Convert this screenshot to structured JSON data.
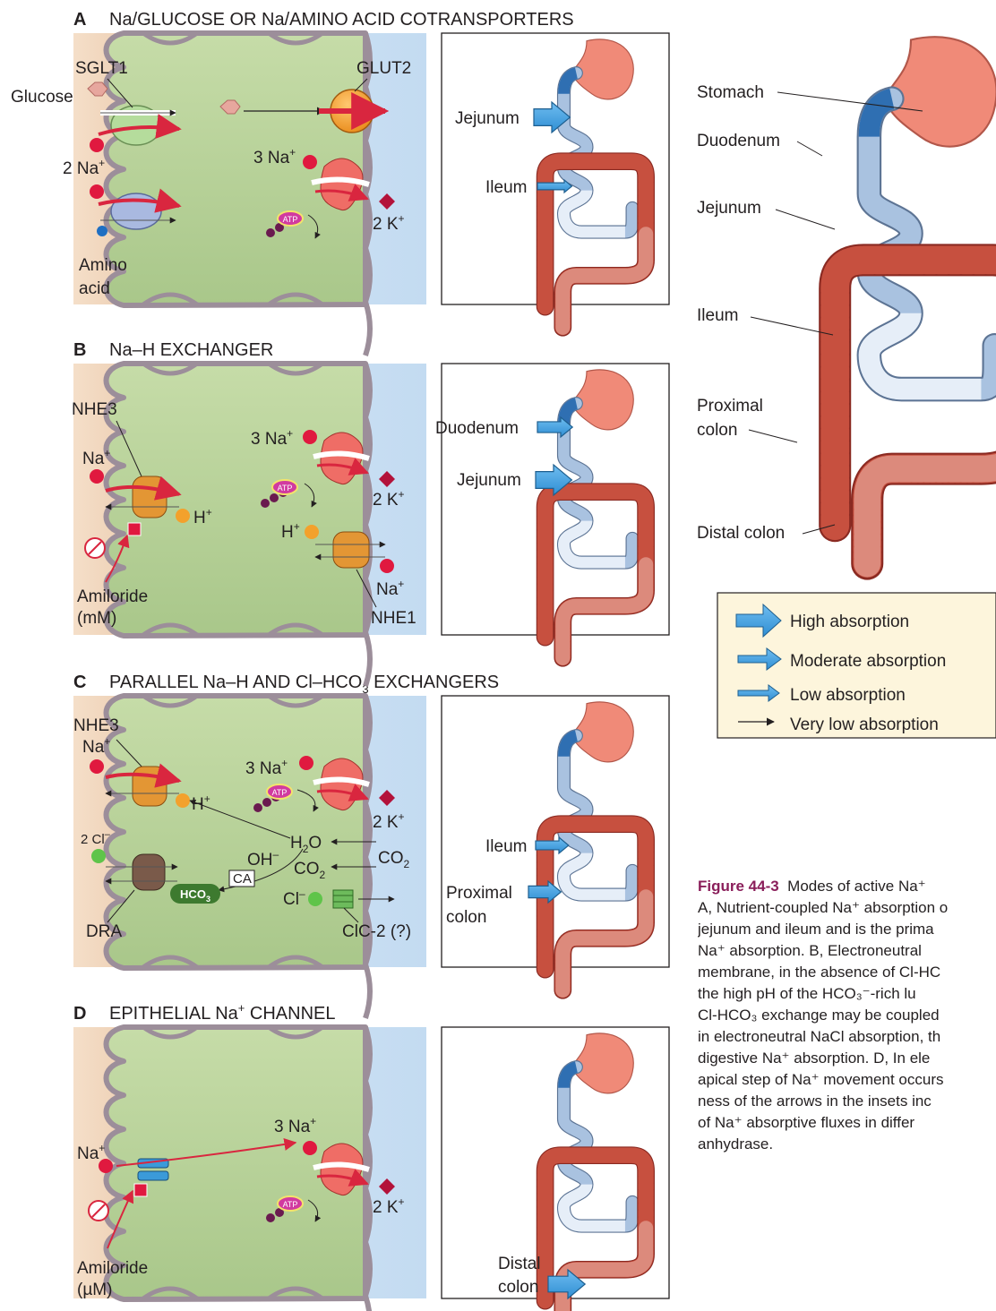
{
  "panels": [
    {
      "letter": "A",
      "title": "Na/GLUCOSE OR Na/AMINO ACID COTRANSPORTERS"
    },
    {
      "letter": "B",
      "title": "Na–H EXCHANGER"
    },
    {
      "letter": "C",
      "title": "PARALLEL Na–H AND Cl–HCO",
      "title_sub": "3",
      "title_tail": " EXCHANGERS"
    },
    {
      "letter": "D",
      "title": "EPITHELIAL Na",
      "title_sup": "+",
      "title_tail": " CHANNEL"
    }
  ],
  "panel_a": {
    "sglt1": "SGLT1",
    "glut2": "GLUT2",
    "glucose": "Glucose",
    "na2": "2 Na",
    "na3": "3 Na",
    "k2": "2 K",
    "plus": "+",
    "amino": "Amino",
    "acid": "acid",
    "atp": "ATP"
  },
  "panel_b": {
    "nhe3": "NHE3",
    "na": "Na",
    "h": "H",
    "na3": "3 Na",
    "k2": "2 K",
    "plus": "+",
    "nhe1": "NHE1",
    "amiloride": "Amiloride",
    "conc": "(mM)",
    "atp": "ATP"
  },
  "panel_c": {
    "nhe3": "NHE3",
    "na": "Na",
    "h": "H",
    "na3": "3 Na",
    "k2": "2 K",
    "plus": "+",
    "minus": "–",
    "cl2": "2 Cl",
    "h2o_h": "H",
    "h2o_o": "O",
    "two": "2",
    "oh": "OH",
    "co2_c": "CO",
    "hco3": "HCO",
    "three": "3",
    "ca": "CA",
    "cl": "Cl",
    "clc2": "ClC-2 (?)",
    "dra": "DRA",
    "atp": "ATP"
  },
  "panel_d": {
    "na": "Na",
    "na3": "3 Na",
    "k2": "2 K",
    "plus": "+",
    "amiloride": "Amiloride",
    "conc": "(µM)",
    "atp": "ATP"
  },
  "insets": [
    {
      "labels": [
        "Jejunum",
        "Ileum"
      ]
    },
    {
      "labels": [
        "Duodenum",
        "Jejunum"
      ]
    },
    {
      "labels": [
        "Ileum",
        "Proximal",
        "colon"
      ]
    },
    {
      "labels": [
        "Distal",
        "colon"
      ]
    }
  ],
  "gut_labels": [
    "Stomach",
    "Duodenum",
    "Jejunum",
    "Ileum",
    "Proximal",
    "colon",
    "Distal colon"
  ],
  "legend": [
    "High absorption",
    "Moderate absorption",
    "Low absorption",
    "Very low absorption"
  ],
  "caption": {
    "fig": "Figure 44-3",
    "lines": [
      "Modes of active Na⁺",
      "A, Nutrient-coupled Na⁺ absorption o",
      "jejunum and ileum and is the prima",
      "Na⁺ absorption. B, Electroneutral",
      "membrane, in the absence of Cl-HC",
      "the high pH of the HCO₃⁻-rich lu",
      "Cl-HCO₃ exchange may be coupled",
      "in electroneutral NaCl absorption, th",
      "digestive Na⁺ absorption. D, In ele",
      "apical step of Na⁺ movement occurs",
      "ness of the arrows in the insets inc",
      "of Na⁺ absorptive fluxes in differ",
      "anhydrase."
    ]
  },
  "colors": {
    "lumen": "#f3dcc4",
    "interstitium": "#cfe2f3",
    "cell": "#b9d39a",
    "membrane": "#9c8e9a",
    "na": "#e0193f",
    "k": "#b3123a",
    "h": "#f3a12c",
    "arrow_red": "#d9263f",
    "high": "#3b9ad9",
    "stomach": "#f08a78",
    "colon": "#c24a3f",
    "smallint": "#a9c2e0",
    "legendbg": "#fdf5dc"
  }
}
